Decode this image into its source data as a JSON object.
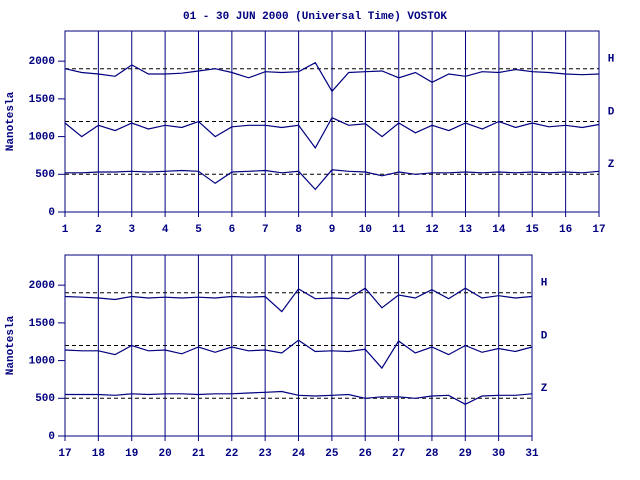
{
  "chart_data": [
    {
      "type": "line",
      "title": "01 - 30 JUN 2000 (Universal Time) VOSTOK",
      "y_label": "Nanotesla",
      "x": [
        1,
        1.5,
        2,
        2.5,
        3,
        3.5,
        4,
        4.5,
        5,
        5.5,
        6,
        6.5,
        7,
        7.5,
        8,
        8.5,
        9,
        9.5,
        10,
        10.5,
        11,
        11.5,
        12,
        12.5,
        13,
        13.5,
        14,
        14.5,
        15,
        15.5,
        16,
        16.5,
        17
      ],
      "series": [
        {
          "name": "H",
          "color": "#000080",
          "baseline": 1900,
          "values": [
            1900,
            1850,
            1830,
            1800,
            1950,
            1830,
            1830,
            1840,
            1870,
            1900,
            1850,
            1780,
            1860,
            1850,
            1860,
            1980,
            1600,
            1850,
            1860,
            1870,
            1780,
            1850,
            1720,
            1830,
            1800,
            1860,
            1850,
            1890,
            1860,
            1850,
            1830,
            1820,
            1830
          ]
        },
        {
          "name": "D",
          "color": "#000080",
          "baseline": 1200,
          "values": [
            1180,
            1000,
            1150,
            1080,
            1180,
            1100,
            1150,
            1120,
            1200,
            1000,
            1130,
            1150,
            1150,
            1120,
            1150,
            850,
            1250,
            1150,
            1170,
            1000,
            1180,
            1050,
            1150,
            1080,
            1180,
            1100,
            1200,
            1120,
            1180,
            1130,
            1150,
            1120,
            1160
          ]
        },
        {
          "name": "Z",
          "color": "#000080",
          "baseline": 500,
          "values": [
            520,
            520,
            530,
            530,
            540,
            530,
            540,
            550,
            540,
            380,
            530,
            540,
            550,
            520,
            540,
            300,
            560,
            540,
            530,
            480,
            530,
            500,
            520,
            520,
            530,
            520,
            530,
            520,
            530,
            520,
            530,
            520,
            540
          ]
        }
      ],
      "xlim": [
        1,
        17
      ],
      "xticks": [
        1,
        2,
        3,
        4,
        5,
        6,
        7,
        8,
        9,
        10,
        11,
        12,
        13,
        14,
        15,
        16,
        17
      ],
      "ylim": [
        0,
        2400
      ],
      "yticks": [
        0,
        500,
        1000,
        1500,
        2000
      ],
      "grid": true
    },
    {
      "type": "line",
      "y_label": "Nanotesla",
      "x": [
        17,
        17.5,
        18,
        18.5,
        19,
        19.5,
        20,
        20.5,
        21,
        21.5,
        22,
        22.5,
        23,
        23.5,
        24,
        24.5,
        25,
        25.5,
        26,
        26.5,
        27,
        27.5,
        28,
        28.5,
        29,
        29.5,
        30,
        30.5,
        31
      ],
      "series": [
        {
          "name": "H",
          "color": "#000080",
          "baseline": 1900,
          "values": [
            1850,
            1840,
            1830,
            1810,
            1850,
            1830,
            1840,
            1830,
            1840,
            1830,
            1850,
            1840,
            1850,
            1650,
            1950,
            1820,
            1830,
            1820,
            1960,
            1700,
            1870,
            1830,
            1940,
            1820,
            1960,
            1830,
            1860,
            1830,
            1850
          ]
        },
        {
          "name": "D",
          "color": "#000080",
          "baseline": 1200,
          "values": [
            1140,
            1130,
            1130,
            1080,
            1200,
            1130,
            1140,
            1090,
            1180,
            1110,
            1180,
            1130,
            1140,
            1100,
            1270,
            1120,
            1130,
            1120,
            1150,
            900,
            1260,
            1100,
            1180,
            1080,
            1200,
            1110,
            1160,
            1120,
            1180
          ]
        },
        {
          "name": "Z",
          "color": "#000080",
          "baseline": 500,
          "values": [
            550,
            550,
            550,
            540,
            560,
            550,
            560,
            560,
            550,
            560,
            560,
            570,
            580,
            590,
            540,
            530,
            540,
            550,
            500,
            520,
            520,
            500,
            530,
            540,
            420,
            530,
            540,
            540,
            560
          ]
        }
      ],
      "xlim": [
        17,
        31
      ],
      "xticks": [
        17,
        18,
        19,
        20,
        21,
        22,
        23,
        24,
        25,
        26,
        27,
        28,
        29,
        30,
        31
      ],
      "ylim": [
        0,
        2400
      ],
      "yticks": [
        0,
        500,
        1000,
        1500,
        2000
      ],
      "grid": true
    }
  ]
}
